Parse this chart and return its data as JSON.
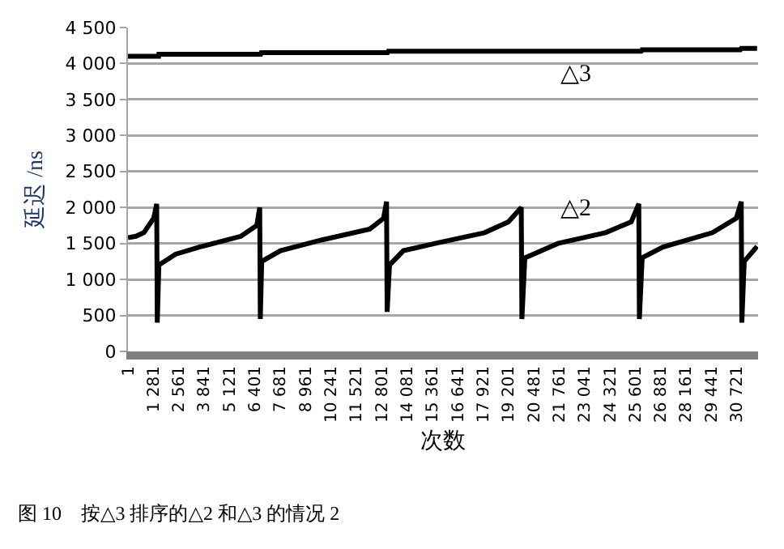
{
  "chart_data": {
    "type": "line",
    "xlabel": "次数",
    "ylabel": "延迟 /ns",
    "xlim": [
      1,
      31800
    ],
    "ylim": [
      0,
      4500
    ],
    "xticks": [
      {
        "value": 1,
        "label": "1"
      },
      {
        "value": 1281,
        "label": "1 281"
      },
      {
        "value": 2561,
        "label": "2 561"
      },
      {
        "value": 3841,
        "label": "3 841"
      },
      {
        "value": 5121,
        "label": "5 121"
      },
      {
        "value": 6401,
        "label": "6 401"
      },
      {
        "value": 7681,
        "label": "7 681"
      },
      {
        "value": 8961,
        "label": "8 961"
      },
      {
        "value": 10241,
        "label": "10 241"
      },
      {
        "value": 11521,
        "label": "11 521"
      },
      {
        "value": 12801,
        "label": "12 801"
      },
      {
        "value": 14081,
        "label": "14 081"
      },
      {
        "value": 15361,
        "label": "15 361"
      },
      {
        "value": 16641,
        "label": "16 641"
      },
      {
        "value": 17921,
        "label": "17 921"
      },
      {
        "value": 19201,
        "label": "19 201"
      },
      {
        "value": 20481,
        "label": "20 481"
      },
      {
        "value": 21761,
        "label": "21 761"
      },
      {
        "value": 23041,
        "label": "23 041"
      },
      {
        "value": 24321,
        "label": "24 321"
      },
      {
        "value": 25601,
        "label": "25 601"
      },
      {
        "value": 26881,
        "label": "26 881"
      },
      {
        "value": 28161,
        "label": "28 161"
      },
      {
        "value": 29441,
        "label": "29 441"
      },
      {
        "value": 30721,
        "label": "30 721"
      }
    ],
    "yticks": [
      0,
      {
        "value": 500,
        "label": "500"
      },
      {
        "value": 1000,
        "label": "1 000"
      },
      {
        "value": 1500,
        "label": "1 500"
      },
      {
        "value": 2000,
        "label": "2 000"
      },
      {
        "value": 2500,
        "label": "2 500"
      },
      {
        "value": 3000,
        "label": "3 000"
      },
      {
        "value": 3500,
        "label": "3 500"
      },
      {
        "value": 4000,
        "label": "4 000"
      },
      {
        "value": 4500,
        "label": "4 500"
      }
    ],
    "grid": "y",
    "legend": false,
    "marker": "none",
    "line_style": "solid",
    "series": [
      {
        "name": "△3",
        "color": "#000000",
        "x": [
          1,
          1550,
          1560,
          6700,
          6730,
          13100,
          13140,
          25900,
          25940,
          30900,
          30950,
          31750
        ],
        "values": [
          4100,
          4100,
          4130,
          4130,
          4150,
          4150,
          4170,
          4170,
          4190,
          4190,
          4210,
          4210
        ]
      },
      {
        "name": "△2",
        "color": "#000000",
        "x": [
          1,
          400,
          800,
          1300,
          1450,
          1480,
          1560,
          2400,
          3600,
          5700,
          6500,
          6650,
          6680,
          6750,
          7700,
          9800,
          12200,
          12900,
          13050,
          13080,
          13200,
          13900,
          15500,
          18000,
          19200,
          19850,
          19880,
          20030,
          21700,
          24100,
          25400,
          25780,
          25810,
          25950,
          27000,
          29500,
          30700,
          30950,
          30980,
          31100,
          31750
        ],
        "values": [
          1580,
          1600,
          1650,
          1850,
          2050,
          400,
          1200,
          1350,
          1450,
          1600,
          1750,
          2000,
          450,
          1250,
          1400,
          1550,
          1700,
          1850,
          2080,
          550,
          1200,
          1400,
          1500,
          1650,
          1800,
          2000,
          450,
          1300,
          1500,
          1650,
          1800,
          2050,
          450,
          1300,
          1450,
          1650,
          1850,
          2080,
          400,
          1250,
          1460
        ]
      }
    ],
    "annotations": [
      "图 10　按△3 排序的△2 和△3 的情况 2"
    ]
  }
}
